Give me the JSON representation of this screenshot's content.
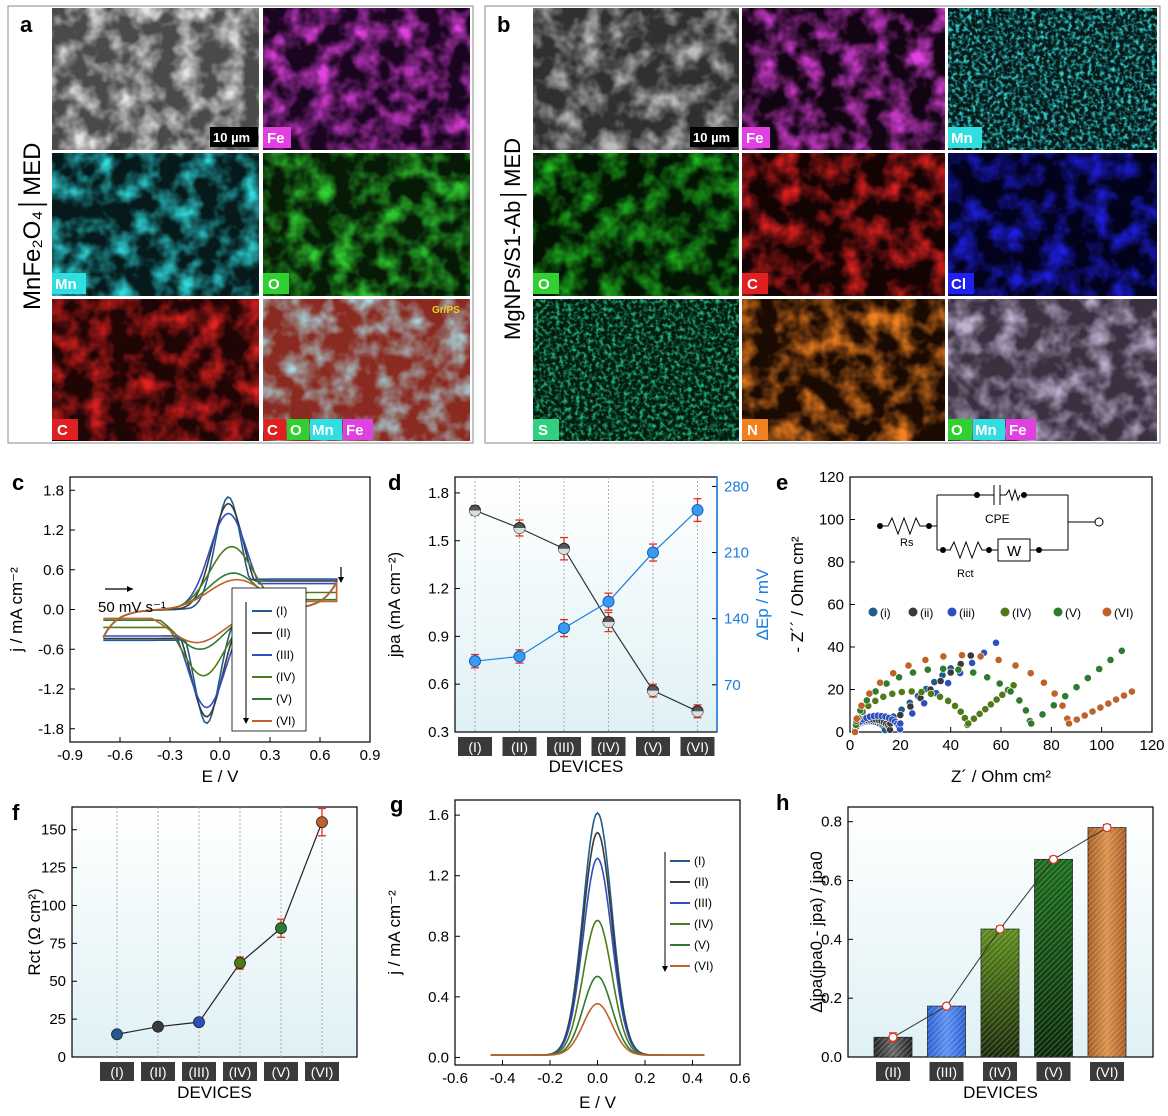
{
  "panel_a": {
    "letter": "a",
    "side_label": "MnFe₂O₄│MED",
    "scale_bar": "10 µm",
    "tiles": [
      "",
      "Fe",
      "Mn",
      "O",
      "C",
      ""
    ],
    "overlay_tag": "Gr/PS",
    "overlay_elements": [
      "C",
      "O",
      "Mn",
      "Fe"
    ]
  },
  "panel_b": {
    "letter": "b",
    "side_label": "MgNPs/S1-Ab│MED",
    "scale_bar": "10 µm",
    "tiles": [
      "",
      "Fe",
      "Mn",
      "O",
      "C",
      "Cl",
      "S",
      "N",
      ""
    ],
    "overlay_elements": [
      "O",
      "Mn",
      "Fe"
    ]
  },
  "colors": {
    "I": "#1f5b8f",
    "II": "#3a3a3a",
    "III": "#2e4fbf",
    "IV": "#4f7a1a",
    "V": "#2f7a2f",
    "VI": "#c0612b",
    "blue_axis": "#1a7ee0",
    "error": "#e03020"
  },
  "chart_data": [
    {
      "id": "c",
      "letter": "c",
      "type": "line",
      "xlabel": "E / V",
      "ylabel": "j / mA cm⁻²",
      "xlim": [
        -0.9,
        0.9
      ],
      "ylim": [
        -2.0,
        2.0
      ],
      "xticks": [
        "-0.9",
        "-0.6",
        "-0.3",
        "0.0",
        "0.3",
        "0.6",
        "0.9"
      ],
      "yticks": [
        "-1.8",
        "-1.2",
        "-0.6",
        "0.0",
        "0.6",
        "1.2",
        "1.8"
      ],
      "annotation": "50 mV s⁻¹",
      "legend": [
        "(I)",
        "(II)",
        "(III)",
        "(IV)",
        "(V)",
        "(VI)"
      ],
      "series": [
        {
          "name": "(I)",
          "anodic_peak": [
            0.05,
            1.7
          ],
          "cathodic_peak": [
            -0.08,
            -1.72
          ]
        },
        {
          "name": "(II)",
          "anodic_peak": [
            0.05,
            1.6
          ],
          "cathodic_peak": [
            -0.08,
            -1.62
          ]
        },
        {
          "name": "(III)",
          "anodic_peak": [
            0.05,
            1.45
          ],
          "cathodic_peak": [
            -0.08,
            -1.48
          ]
        },
        {
          "name": "(IV)",
          "anodic_peak": [
            0.07,
            0.95
          ],
          "cathodic_peak": [
            -0.1,
            -1.0
          ]
        },
        {
          "name": "(V)",
          "anodic_peak": [
            0.08,
            0.55
          ],
          "cathodic_peak": [
            -0.12,
            -0.6
          ]
        },
        {
          "name": "(VI)",
          "anodic_peak": [
            0.1,
            0.45
          ],
          "cathodic_peak": [
            -0.14,
            -0.5
          ]
        }
      ]
    },
    {
      "id": "d",
      "letter": "d",
      "type": "line",
      "xlabel": "DEVICES",
      "ylabel": "jpa (mA cm⁻²)",
      "ylabel_right": "ΔEp / mV",
      "categories": [
        "(I)",
        "(II)",
        "(III)",
        "(IV)",
        "(V)",
        "(VI)"
      ],
      "ylim": [
        0.3,
        1.9
      ],
      "ylim_right": [
        20,
        290
      ],
      "yticks": [
        "0.3",
        "0.6",
        "0.9",
        "1.2",
        "1.5",
        "1.8"
      ],
      "yticks_right": [
        "70",
        "140",
        "210",
        "280"
      ],
      "series": [
        {
          "name": "jpa",
          "values": [
            1.69,
            1.58,
            1.45,
            0.99,
            0.56,
            0.43
          ],
          "errors": [
            0.03,
            0.05,
            0.07,
            0.06,
            0.04,
            0.04
          ]
        },
        {
          "name": "ΔEp",
          "values": [
            95,
            100,
            130,
            158,
            210,
            255
          ],
          "errors": [
            7,
            7,
            9,
            9,
            9,
            12
          ]
        }
      ]
    },
    {
      "id": "e",
      "letter": "e",
      "type": "scatter",
      "xlabel": "Z´ / Ohm cm²",
      "ylabel": "- Z´´ / Ohm cm²",
      "xlim": [
        0,
        120
      ],
      "ylim": [
        0,
        120
      ],
      "xticks": [
        "0",
        "20",
        "40",
        "60",
        "80",
        "100",
        "120"
      ],
      "yticks": [
        "0",
        "20",
        "40",
        "60",
        "80",
        "100",
        "120"
      ],
      "circuit_labels": [
        "CPE",
        "Rs",
        "Rct",
        "W"
      ],
      "legend": [
        "(i)",
        "(ii)",
        "(iii)",
        "(IV)",
        "(V)",
        "(VI)"
      ],
      "series": [
        {
          "name": "(i)",
          "rs": 2,
          "rct": 12,
          "slope": 1.0,
          "x_end": 40
        },
        {
          "name": "(ii)",
          "rs": 2,
          "rct": 14,
          "slope": 1.0,
          "x_end": 48
        },
        {
          "name": "(iii)",
          "rs": 2,
          "rct": 18,
          "slope": 1.0,
          "x_end": 58
        },
        {
          "name": "(IV)",
          "rs": 2,
          "rct": 45,
          "slope": 1.0,
          "x_end": 65
        },
        {
          "name": "(V)",
          "rs": 2,
          "rct": 70,
          "slope": 0.95,
          "x_end": 108
        },
        {
          "name": "(VI)",
          "rs": 2,
          "rct": 85,
          "slope": 0.6,
          "x_end": 112
        }
      ]
    },
    {
      "id": "f",
      "letter": "f",
      "type": "line",
      "xlabel": "DEVICES",
      "ylabel": "Rct (Ω cm²)",
      "categories": [
        "(I)",
        "(II)",
        "(III)",
        "(IV)",
        "(V)",
        "(VI)"
      ],
      "ylim": [
        0,
        165
      ],
      "yticks": [
        "0",
        "25",
        "50",
        "75",
        "100",
        "125",
        "150"
      ],
      "series": [
        {
          "name": "Rct",
          "values": [
            15,
            20,
            23,
            62,
            85,
            155
          ],
          "errors": [
            1,
            2,
            2,
            4,
            6,
            9
          ]
        }
      ]
    },
    {
      "id": "g",
      "letter": "g",
      "type": "line",
      "xlabel": "E / V",
      "ylabel": "j / mA cm⁻²",
      "xlim": [
        -0.6,
        0.6
      ],
      "ylim": [
        -0.05,
        1.7
      ],
      "xticks": [
        "-0.6",
        "-0.4",
        "-0.2",
        "0.0",
        "0.2",
        "0.4",
        "0.6"
      ],
      "yticks": [
        "0.0",
        "0.4",
        "0.8",
        "1.2",
        "1.6"
      ],
      "legend": [
        "(I)",
        "(II)",
        "(III)",
        "(IV)",
        "(V)",
        "(VI)"
      ],
      "series": [
        {
          "name": "(I)",
          "peak": 1.6
        },
        {
          "name": "(II)",
          "peak": 1.47
        },
        {
          "name": "(III)",
          "peak": 1.3
        },
        {
          "name": "(IV)",
          "peak": 0.89
        },
        {
          "name": "(V)",
          "peak": 0.52
        },
        {
          "name": "(VI)",
          "peak": 0.34
        }
      ]
    },
    {
      "id": "h",
      "letter": "h",
      "type": "bar",
      "xlabel": "DEVICES",
      "ylabel": "Δjpa(jpa0 - jpa) / jpa0",
      "categories": [
        "(II)",
        "(III)",
        "(IV)",
        "(V)",
        "(VI)"
      ],
      "ylim": [
        0,
        0.85
      ],
      "yticks": [
        "0.0",
        "0.2",
        "0.4",
        "0.6",
        "0.8"
      ],
      "series": [
        {
          "name": "Δjpa",
          "values": [
            0.067,
            0.173,
            0.435,
            0.672,
            0.78
          ],
          "errors": [
            0.015,
            0.006,
            0.01,
            0.01,
            0.01
          ]
        }
      ]
    }
  ]
}
